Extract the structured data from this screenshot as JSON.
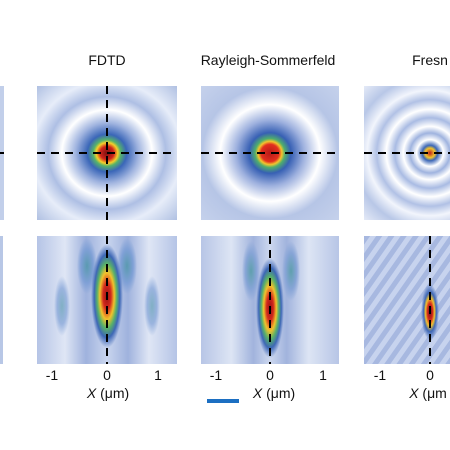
{
  "columns": [
    {
      "title": "FDTD",
      "id": "fdtd"
    },
    {
      "title": "Rayleigh-Sommerfeld",
      "id": "rs"
    },
    {
      "title": "Fresn",
      "id": "fresnel"
    }
  ],
  "x_axis": {
    "var": "X",
    "unit": " (μm)",
    "tick_labels": [
      "-1",
      "0",
      "1"
    ],
    "third_label": "(μm"
  },
  "colors": {
    "background_blue": "#b7c6e6",
    "ring_white": "#ffffff",
    "peak_red": "#c8281e",
    "scale_bar": "#1c6fc2",
    "crosshair": "#000000"
  }
}
